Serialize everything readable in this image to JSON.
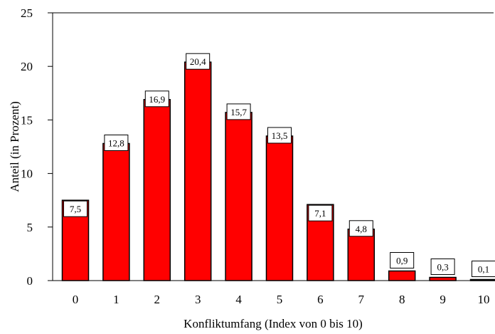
{
  "chart_data": {
    "type": "bar",
    "categories": [
      "0",
      "1",
      "2",
      "3",
      "4",
      "5",
      "6",
      "7",
      "8",
      "9",
      "10"
    ],
    "values": [
      7.5,
      12.8,
      16.9,
      20.4,
      15.7,
      13.5,
      7.1,
      4.8,
      0.9,
      0.3,
      0.1
    ],
    "data_labels": [
      "7,5",
      "12,8",
      "16,9",
      "20,4",
      "15,7",
      "13,5",
      "7,1",
      "4,8",
      "0,9",
      "0,3",
      "0,1"
    ],
    "xlabel": "Konfliktumfang (Index von 0 bis 10)",
    "ylabel": "Anteil (in Prozent)",
    "ylim": [
      0,
      25
    ],
    "yticks": [
      0,
      5,
      10,
      15,
      20,
      25
    ],
    "grid": false,
    "bar_color": "#ff0000",
    "bar_edge_color": "#000000"
  }
}
